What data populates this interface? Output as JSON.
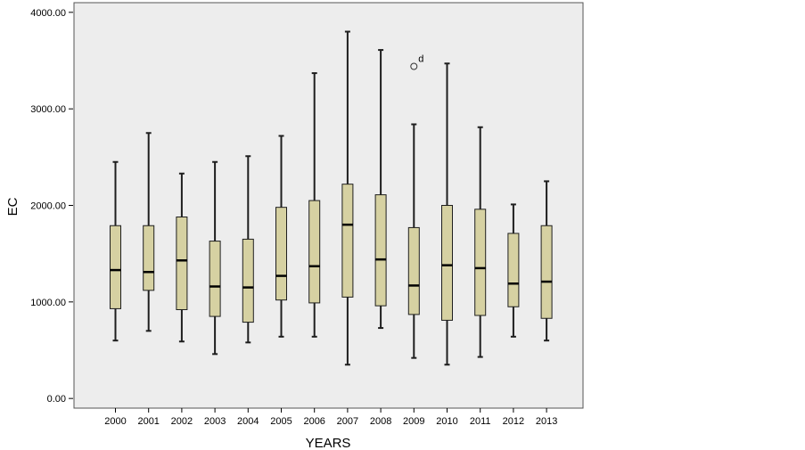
{
  "chart_data": {
    "type": "boxplot",
    "xlabel": "YEARS",
    "ylabel": "EC",
    "ylim": [
      -100,
      4100
    ],
    "y_ticks": [
      0,
      1000,
      2000,
      3000,
      4000
    ],
    "y_tick_labels": [
      "0.00",
      "1000.00",
      "2000.00",
      "3000.00",
      "4000.00"
    ],
    "categories": [
      "2000",
      "2001",
      "2002",
      "2003",
      "2004",
      "2005",
      "2006",
      "2007",
      "2008",
      "2009",
      "2010",
      "2011",
      "2012",
      "2013"
    ],
    "boxes": [
      {
        "category": "2000",
        "min": 600,
        "q1": 930,
        "median": 1330,
        "q3": 1790,
        "max": 2450
      },
      {
        "category": "2001",
        "min": 700,
        "q1": 1120,
        "median": 1310,
        "q3": 1790,
        "max": 2750
      },
      {
        "category": "2002",
        "min": 590,
        "q1": 920,
        "median": 1430,
        "q3": 1880,
        "max": 2330
      },
      {
        "category": "2003",
        "min": 460,
        "q1": 850,
        "median": 1160,
        "q3": 1630,
        "max": 2450
      },
      {
        "category": "2004",
        "min": 580,
        "q1": 790,
        "median": 1150,
        "q3": 1650,
        "max": 2510
      },
      {
        "category": "2005",
        "min": 640,
        "q1": 1020,
        "median": 1270,
        "q3": 1980,
        "max": 2720
      },
      {
        "category": "2006",
        "min": 640,
        "q1": 990,
        "median": 1370,
        "q3": 2050,
        "max": 3370
      },
      {
        "category": "2007",
        "min": 350,
        "q1": 1050,
        "median": 1800,
        "q3": 2220,
        "max": 3800
      },
      {
        "category": "2008",
        "min": 730,
        "q1": 960,
        "median": 1440,
        "q3": 2110,
        "max": 3610
      },
      {
        "category": "2009",
        "min": 420,
        "q1": 870,
        "median": 1170,
        "q3": 1770,
        "max": 2840
      },
      {
        "category": "2010",
        "min": 350,
        "q1": 810,
        "median": 1380,
        "q3": 2000,
        "max": 3470
      },
      {
        "category": "2011",
        "min": 430,
        "q1": 860,
        "median": 1350,
        "q3": 1960,
        "max": 2810
      },
      {
        "category": "2012",
        "min": 640,
        "q1": 950,
        "median": 1190,
        "q3": 1710,
        "max": 2010
      },
      {
        "category": "2013",
        "min": 600,
        "q1": 830,
        "median": 1210,
        "q3": 1790,
        "max": 2250
      }
    ],
    "outliers": [
      {
        "category": "2009",
        "value": 3440,
        "label": "d"
      }
    ],
    "colors": {
      "box_fill": "#d6d1a2",
      "plot_background": "#ededed",
      "stroke": "#1e1e1e"
    },
    "grid": false,
    "legend": "none"
  }
}
